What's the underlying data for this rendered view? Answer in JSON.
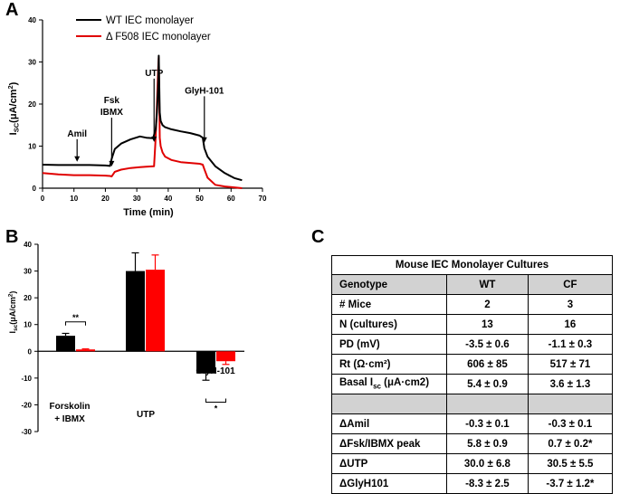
{
  "panels": {
    "a": "A",
    "b": "B",
    "c": "C"
  },
  "chart_data": [
    {
      "type": "line",
      "panel": "A",
      "ylabel_main": "I",
      "ylabel_sub": "SC",
      "ylabel_rest": "(μA/cm",
      "ylabel_sup": "2",
      "ylabel_end": ")",
      "xlabel": "Time (min)",
      "xlim": [
        0,
        70
      ],
      "ylim": [
        0,
        40
      ],
      "xticks": [
        "0",
        "10",
        "20",
        "30",
        "40",
        "50",
        "60",
        "70"
      ],
      "yticks": [
        "0",
        "10",
        "20",
        "30",
        "40"
      ],
      "legend": [
        "WT IEC monolayer",
        "Δ F508 IEC monolayer"
      ],
      "annotations": [
        {
          "label": "Amil",
          "x": 11,
          "y_text": 12.3,
          "y_arrow_end": 6.3
        },
        {
          "label": "Fsk",
          "label2": "IBMX",
          "x": 22,
          "y_text": 17.4,
          "y_arrow_end": 5.2
        },
        {
          "label": "UTP",
          "x": 35.5,
          "y_text": 26.7,
          "y_arrow_end": 11.0
        },
        {
          "label": "GlyH-101",
          "x": 51.5,
          "y_text": 22.5,
          "y_arrow_end": 10.8
        }
      ],
      "series": [
        {
          "name": "WT IEC monolayer",
          "color": "#000000",
          "x": [
            0,
            5,
            10,
            15,
            20,
            21.5,
            22,
            23,
            25,
            28,
            31,
            33,
            35.2,
            36,
            36.4,
            36.8,
            37,
            37.3,
            37.6,
            38.2,
            39,
            41,
            44,
            47,
            50,
            51,
            51.5,
            52.5,
            55,
            58,
            61,
            63.5
          ],
          "y": [
            5.6,
            5.5,
            5.5,
            5.5,
            5.4,
            5.3,
            7.0,
            9.3,
            10.6,
            11.6,
            12.3,
            12.0,
            11.9,
            14.0,
            18.0,
            24.0,
            31.5,
            18.0,
            16.0,
            15.0,
            14.5,
            14.0,
            13.5,
            13.1,
            12.5,
            12.0,
            9.5,
            7.5,
            5.2,
            3.6,
            2.4,
            1.9
          ]
        },
        {
          "name": "Δ F508 IEC monolayer",
          "color": "#e00000",
          "x": [
            0,
            5,
            10,
            15,
            20,
            21.5,
            22,
            23,
            25,
            28,
            31,
            33,
            35.5,
            36,
            36.4,
            36.8,
            37,
            37.3,
            37.6,
            38.2,
            39,
            41,
            44,
            47,
            50,
            51,
            51.5,
            52.5,
            55,
            58,
            61,
            63.5
          ],
          "y": [
            3.6,
            3.3,
            3.1,
            3.1,
            3.0,
            2.9,
            2.8,
            3.9,
            4.4,
            4.8,
            5.0,
            5.1,
            5.2,
            12.0,
            20.0,
            28.0,
            31.0,
            12.0,
            10.0,
            8.5,
            7.5,
            6.7,
            6.2,
            6.0,
            5.8,
            5.6,
            4.5,
            2.5,
            0.8,
            0.4,
            0.2,
            0.0
          ]
        }
      ]
    },
    {
      "type": "bar",
      "panel": "B",
      "ylabel_main": "I",
      "ylabel_sub": "sc",
      "ylabel_rest": "(μA/cm",
      "ylabel_sup": "2",
      "ylabel_end": ")",
      "ylim": [
        -30,
        40
      ],
      "yticks": [
        "-30",
        "-20",
        "-10",
        "0",
        "10",
        "20",
        "30",
        "40"
      ],
      "categories": [
        "Forskolin + IBMX",
        "UTP",
        "GlyH-101"
      ],
      "category_lines": [
        [
          "Forskolin",
          "+ IBMX"
        ],
        [
          "UTP"
        ],
        [
          "GlyH-101"
        ]
      ],
      "series": [
        {
          "name": "WT",
          "color": "#000000",
          "values": [
            5.8,
            30.0,
            -8.3
          ],
          "errors": [
            0.9,
            6.8,
            2.5
          ]
        },
        {
          "name": "CF",
          "color": "#ff0000",
          "values": [
            0.7,
            30.5,
            -3.7
          ],
          "errors": [
            0.2,
            5.5,
            1.2
          ]
        }
      ],
      "significance": [
        {
          "category": 0,
          "label": "**"
        },
        {
          "category": 2,
          "label": "*"
        }
      ]
    }
  ],
  "table": {
    "panel": "C",
    "title": "Mouse IEC Monolayer Cultures",
    "headers": [
      "Genotype",
      "WT",
      "CF"
    ],
    "rows": [
      {
        "label": "# Mice",
        "wt": "2",
        "cf": "3"
      },
      {
        "label": "N (cultures)",
        "wt": "13",
        "cf": "16"
      },
      {
        "label": "PD (mV)",
        "wt": "-3.5 ± 0.6",
        "cf": "-1.1 ± 0.3"
      },
      {
        "label": "Rt (Ω·cm²)",
        "wt": "606 ± 85",
        "cf": "517 ± 71"
      },
      {
        "label": "Basal I",
        "label_sub": "sc",
        "label_rest": " (μA·cm2)",
        "wt": "5.4 ± 0.9",
        "cf": "3.6 ± 1.3"
      }
    ],
    "rows2": [
      {
        "label": "ΔAmil",
        "wt": "-0.3 ± 0.1",
        "cf": "-0.3 ± 0.1"
      },
      {
        "label": "ΔFsk/IBMX peak",
        "wt": "5.8 ± 0.9",
        "cf": "0.7 ± 0.2*"
      },
      {
        "label": "ΔUTP",
        "wt": "30.0 ± 6.8",
        "cf": "30.5 ± 5.5"
      },
      {
        "label": "ΔGlyH101",
        "wt": "-8.3 ± 2.5",
        "cf": "-3.7 ± 1.2*"
      }
    ]
  }
}
